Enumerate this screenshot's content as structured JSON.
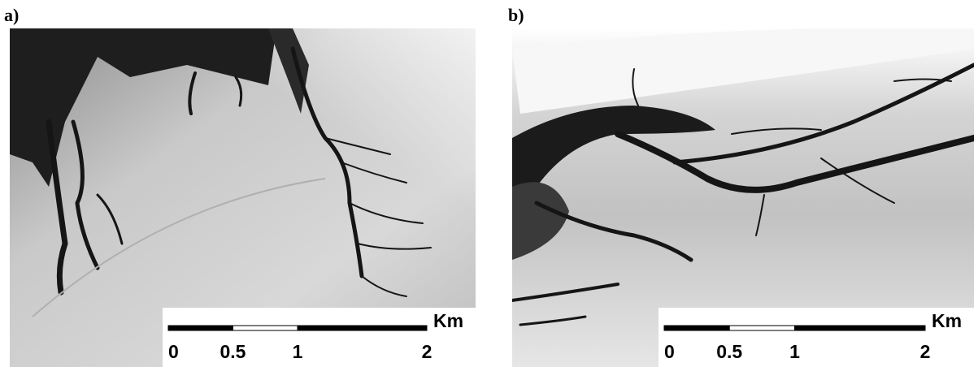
{
  "panels": [
    {
      "label": "a)",
      "scale_bar": {
        "unit": "Km",
        "ticks": [
          0,
          0.5,
          1,
          2
        ]
      }
    },
    {
      "label": "b)",
      "scale_bar": {
        "unit": "Km",
        "ticks": [
          0,
          0.5,
          1,
          2
        ]
      }
    }
  ]
}
